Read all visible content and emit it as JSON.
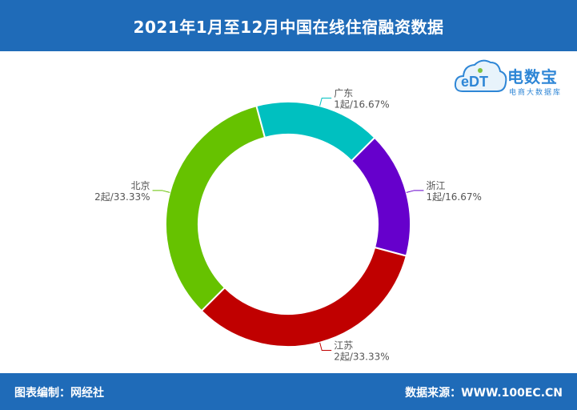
{
  "header": {
    "title": "2021年1月至12月中国在线住宿融资数据"
  },
  "footer": {
    "left_text": "图表编制：网经社",
    "right_text": "数据来源：WWW.100EC.CN"
  },
  "logo": {
    "brand": "电数宝",
    "sub": "电商大数据库",
    "mark": "eDT",
    "colors": {
      "blue": "#2e86d6",
      "green": "#7dc242"
    }
  },
  "chart_data": {
    "type": "pie",
    "variant": "donut",
    "unit": "起",
    "slices": [
      {
        "name": "浙江",
        "value": 1,
        "percent": "16.67%",
        "color": "#6600cc",
        "label": "1起/16.67%"
      },
      {
        "name": "江苏",
        "value": 2,
        "percent": "33.33%",
        "color": "#c00000",
        "label": "2起/33.33%"
      },
      {
        "name": "北京",
        "value": 2,
        "percent": "33.33%",
        "color": "#66c200",
        "label": "2起/33.33%"
      },
      {
        "name": "广东",
        "value": 1,
        "percent": "16.67%",
        "color": "#00c0c0",
        "label": "1起/16.67%"
      }
    ]
  }
}
